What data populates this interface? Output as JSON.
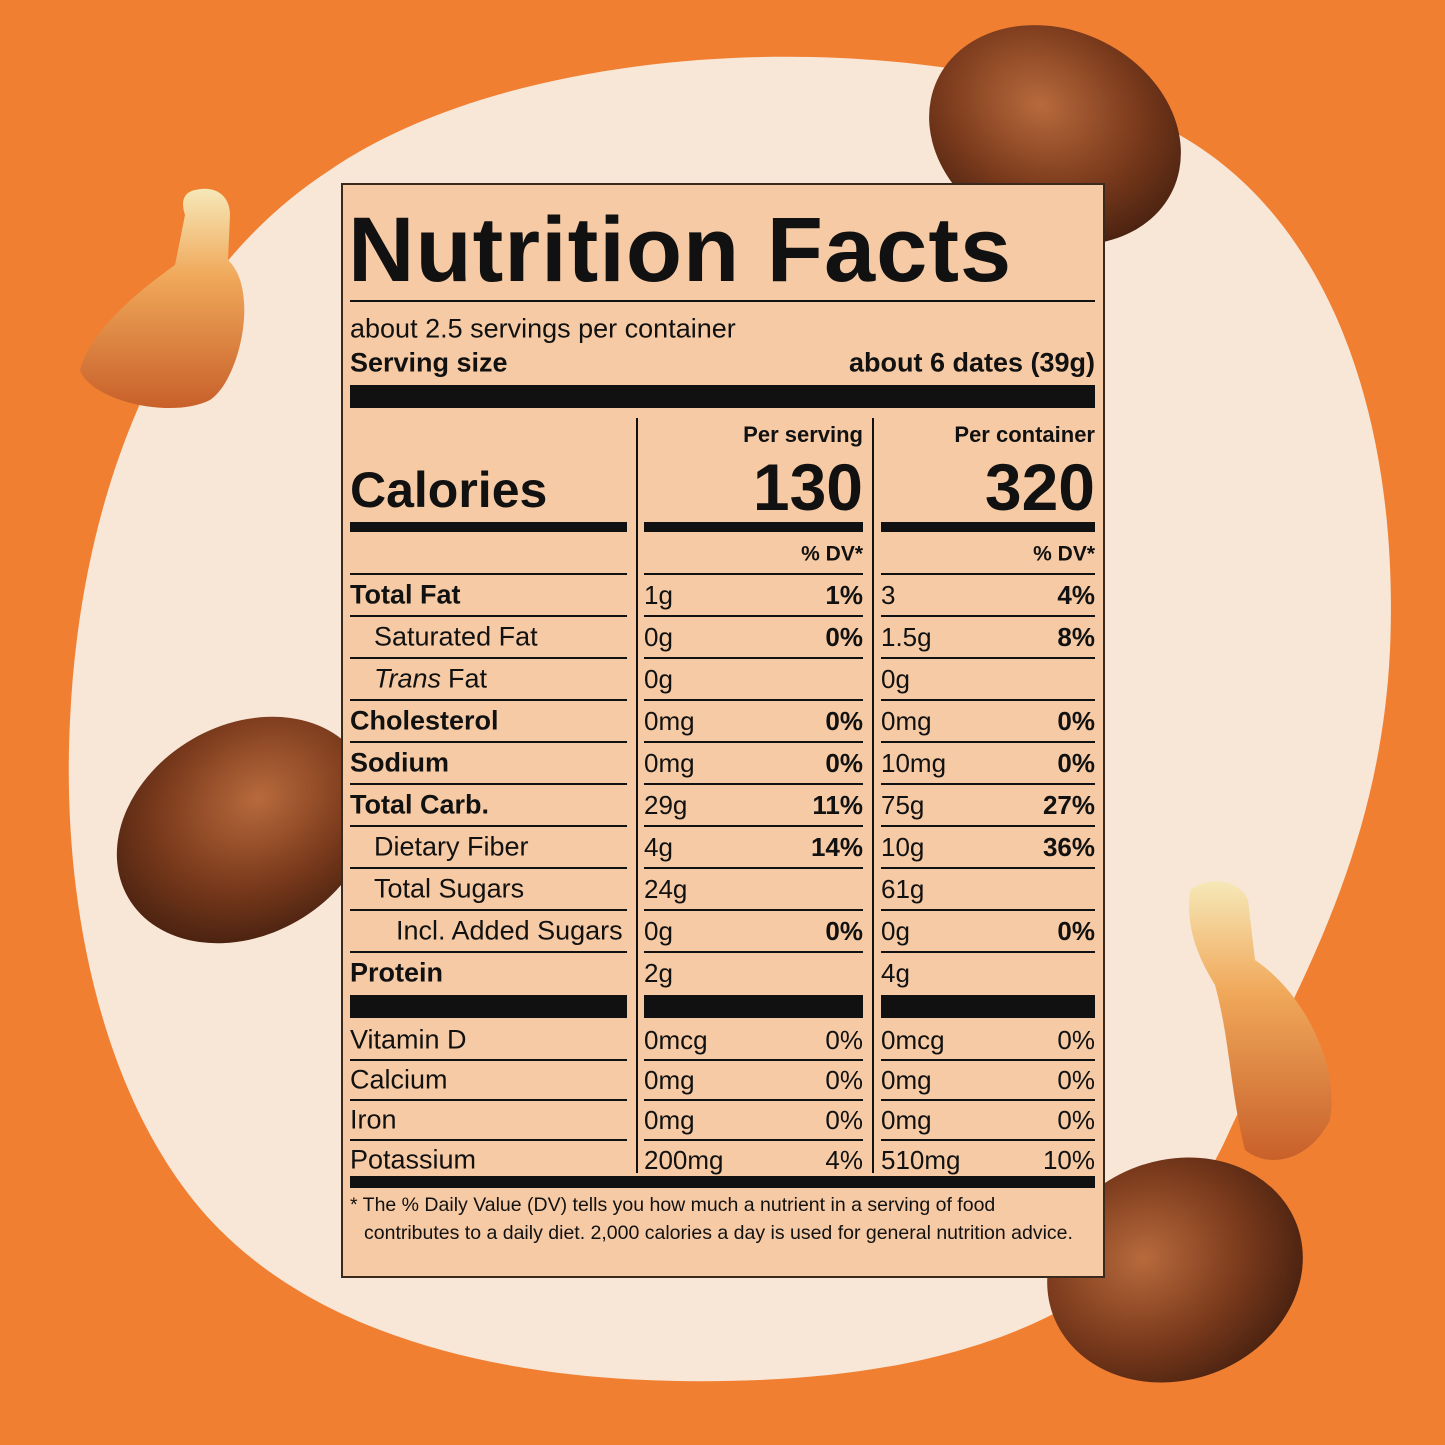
{
  "label": {
    "title": "Nutrition Facts",
    "servings_per_container": "about 2.5 servings per container",
    "serving_size": {
      "label": "Serving size",
      "value": "about 6 dates (39g)"
    },
    "columns": [
      "Per serving",
      "Per container"
    ],
    "calories": {
      "label": "Calories",
      "values": [
        "130",
        "320"
      ]
    },
    "dv_header": "% DV*",
    "nutrients": [
      {
        "name": "Total Fat",
        "serving": [
          "1g",
          "1%"
        ],
        "container": [
          "3",
          "4%"
        ]
      },
      {
        "name": "Saturated Fat",
        "serving": [
          "0g",
          "0%"
        ],
        "container": [
          "1.5g",
          "8%"
        ]
      },
      {
        "name": [
          "Trans",
          "Fat"
        ],
        "serving": [
          "0g",
          null
        ],
        "container": [
          "0g",
          null
        ]
      },
      {
        "name": "Cholesterol",
        "serving": [
          "0mg",
          "0%"
        ],
        "container": [
          "0mg",
          "0%"
        ]
      },
      {
        "name": "Sodium",
        "serving": [
          "0mg",
          "0%"
        ],
        "container": [
          "10mg",
          "0%"
        ]
      },
      {
        "name": "Total Carb.",
        "serving": [
          "29g",
          "11%"
        ],
        "container": [
          "75g",
          "27%"
        ]
      },
      {
        "name": "Dietary Fiber",
        "serving": [
          "4g",
          "14%"
        ],
        "container": [
          "10g",
          "36%"
        ]
      },
      {
        "name": "Total Sugars",
        "serving": [
          "24g",
          null
        ],
        "container": [
          "61g",
          null
        ]
      },
      {
        "name": "Incl. Added Sugars",
        "serving": [
          "0g",
          "0%"
        ],
        "container": [
          "0g",
          "0%"
        ]
      },
      {
        "name": "Protein",
        "serving": [
          "2g",
          null
        ],
        "container": [
          "4g",
          null
        ]
      }
    ],
    "vitamins": [
      {
        "name": "Vitamin D",
        "serving": [
          "0mcg",
          "0%"
        ],
        "container": [
          "0mcg",
          "0%"
        ]
      },
      {
        "name": "Calcium",
        "serving": [
          "0mg",
          "0%"
        ],
        "container": [
          "0mg",
          "0%"
        ]
      },
      {
        "name": "Iron",
        "serving": [
          "0mg",
          "0%"
        ],
        "container": [
          "0mg",
          "0%"
        ]
      },
      {
        "name": "Potassium",
        "serving": [
          "200mg",
          "4%"
        ],
        "container": [
          "510mg",
          "10%"
        ]
      }
    ],
    "footnote": "* The % Daily Value (DV) tells you how much a nutrient in a serving of food contributes to a daily diet. 2,000 calories a day is used for general nutrition advice."
  }
}
